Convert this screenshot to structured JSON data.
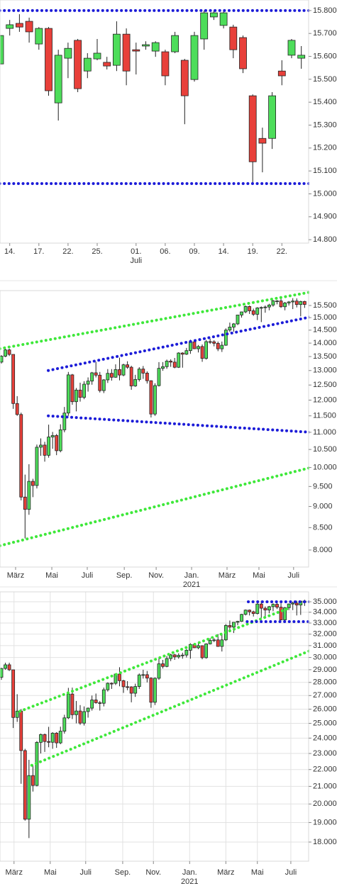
{
  "chart_data": [
    {
      "type": "candlestick",
      "log_scale": false,
      "grid": false,
      "color_up": "#4ddd5a",
      "color_down": "#e8403a",
      "ylim": [
        14785,
        15846
      ],
      "yticks": [
        {
          "value": 14800,
          "label": "14.800"
        },
        {
          "value": 14900,
          "label": "14.900"
        },
        {
          "value": 15000,
          "label": "15.000"
        },
        {
          "value": 15100,
          "label": "15.100"
        },
        {
          "value": 15200,
          "label": "15.200"
        },
        {
          "value": 15300,
          "label": "15.300"
        },
        {
          "value": 15400,
          "label": "15.400"
        },
        {
          "value": 15500,
          "label": "15.500"
        },
        {
          "value": 15600,
          "label": "15.600"
        },
        {
          "value": 15700,
          "label": "15.700"
        },
        {
          "value": 15800,
          "label": "15.800"
        }
      ],
      "xticks": [
        {
          "value": 1,
          "label": "14."
        },
        {
          "value": 4,
          "label": "17."
        },
        {
          "value": 7,
          "label": "22."
        },
        {
          "value": 10,
          "label": "25."
        },
        {
          "value": 14,
          "label": "01."
        },
        {
          "value": 17,
          "label": "06."
        },
        {
          "value": 20,
          "label": "09."
        },
        {
          "value": 23,
          "label": "14."
        },
        {
          "value": 26,
          "label": "19."
        },
        {
          "value": 29,
          "label": "22."
        }
      ],
      "xticks_secondary": [
        {
          "value": 14,
          "label": "Juli"
        }
      ],
      "open": [
        15567,
        15722,
        15744,
        15753,
        15654,
        15722,
        15397,
        15592,
        15670,
        15536,
        15589,
        15574,
        15561,
        15697,
        15629,
        15645,
        15623,
        15620,
        15620,
        15583,
        15499,
        15676,
        15772,
        15735,
        15728,
        15682,
        15428,
        15242,
        15242,
        15536,
        15605,
        15592
      ],
      "high": [
        15722,
        15759,
        15784,
        15769,
        15728,
        15728,
        15629,
        15660,
        15676,
        15614,
        15676,
        15598,
        15753,
        15722,
        15660,
        15666,
        15666,
        15629,
        15707,
        15589,
        15707,
        15800,
        15800,
        15800,
        15738,
        15691,
        15434,
        15289,
        15444,
        15583,
        15676,
        15645
      ],
      "low": [
        15552,
        15691,
        15707,
        15660,
        15629,
        15428,
        15320,
        15505,
        15444,
        15505,
        15583,
        15543,
        15536,
        15474,
        15521,
        15629,
        15598,
        15474,
        15614,
        15304,
        15490,
        15629,
        15759,
        15722,
        15592,
        15527,
        15047,
        15094,
        15196,
        15474,
        15592,
        15546
      ],
      "close": [
        15691,
        15738,
        15728,
        15707,
        15722,
        15450,
        15605,
        15635,
        15459,
        15592,
        15614,
        15558,
        15697,
        15536,
        15623,
        15651,
        15660,
        15515,
        15691,
        15428,
        15691,
        15790,
        15790,
        15790,
        15629,
        15546,
        15140,
        15221,
        15428,
        15515,
        15670,
        15605
      ],
      "trend_lines": [
        {
          "color": "#1c1cd8",
          "x": [
            -1,
            32
          ],
          "y": [
            15800,
            15800
          ]
        },
        {
          "color": "#1c1cd8",
          "x": [
            -1,
            32
          ],
          "y": [
            15045,
            15045
          ]
        }
      ]
    },
    {
      "type": "candlestick",
      "log_scale": true,
      "grid": false,
      "color_up": "#4ddd5a",
      "color_down": "#e8403a",
      "ylim": [
        7640,
        16137
      ],
      "yticks": [
        {
          "value": 8000,
          "label": "8.000"
        },
        {
          "value": 8500,
          "label": "8.500"
        },
        {
          "value": 9000,
          "label": "9.000"
        },
        {
          "value": 9500,
          "label": "9.500"
        },
        {
          "value": 10000,
          "label": "10.000"
        },
        {
          "value": 10500,
          "label": "10.500"
        },
        {
          "value": 11000,
          "label": "11.000"
        },
        {
          "value": 11500,
          "label": "11.500"
        },
        {
          "value": 12000,
          "label": "12.000"
        },
        {
          "value": 12500,
          "label": "12.500"
        },
        {
          "value": 13000,
          "label": "13.000"
        },
        {
          "value": 13500,
          "label": "13.500"
        },
        {
          "value": 14000,
          "label": "14.000"
        },
        {
          "value": 14500,
          "label": "14.500"
        },
        {
          "value": 15000,
          "label": "15.000"
        },
        {
          "value": 15500,
          "label": "15.500"
        }
      ],
      "xticks": [
        {
          "value": 3.6,
          "label": "März"
        },
        {
          "value": 12.8,
          "label": "Mai"
        },
        {
          "value": 21.8,
          "label": "Juli"
        },
        {
          "value": 31.2,
          "label": "Sep."
        },
        {
          "value": 39.3,
          "label": "Nov."
        },
        {
          "value": 48.3,
          "label": "Jan."
        },
        {
          "value": 57.3,
          "label": "März"
        },
        {
          "value": 65.4,
          "label": "Mai"
        },
        {
          "value": 74.2,
          "label": "Juli"
        }
      ],
      "xticks_secondary": [
        {
          "value": 48.3,
          "label": "2021"
        }
      ],
      "open": [
        13300,
        13513,
        13745,
        13579,
        11890,
        11542,
        9232,
        8929,
        9633,
        9525,
        10565,
        10626,
        10336,
        10861,
        10904,
        10465,
        11074,
        11587,
        12848,
        11949,
        12331,
        12089,
        12528,
        12634,
        12920,
        12838,
        12313,
        12675,
        12901,
        12765,
        13033,
        12842,
        13203,
        13116,
        12469,
        12689,
        13052,
        12909,
        12646,
        11556,
        12480,
        13077,
        13137,
        13335,
        13299,
        13114,
        13630,
        13587,
        13719,
        14049,
        13788,
        13873,
        13433,
        14057,
        14050,
        13993,
        13786,
        13920,
        14502,
        14621,
        14748,
        15107,
        15234,
        15459,
        15280,
        15136,
        15400,
        15417,
        15437,
        15520,
        15693,
        15693,
        15448,
        15607,
        15650,
        15688,
        15540,
        15669
      ],
      "high": [
        13550,
        13795,
        13790,
        13580,
        12130,
        11600,
        9810,
        10090,
        9700,
        10640,
        10820,
        10720,
        11230,
        11010,
        10950,
        11240,
        11780,
        12950,
        12880,
        12400,
        12580,
        12630,
        12760,
        12950,
        13310,
        12950,
        12700,
        13050,
        13050,
        13220,
        13460,
        13240,
        13330,
        13170,
        12850,
        13120,
        13160,
        12970,
        12660,
        12560,
        13300,
        13300,
        13390,
        13400,
        13450,
        13660,
        13660,
        13820,
        14130,
        14090,
        13930,
        13950,
        14120,
        14170,
        14110,
        14060,
        14060,
        14570,
        14800,
        14780,
        15110,
        15240,
        15500,
        15500,
        15370,
        15430,
        15460,
        15500,
        15570,
        15730,
        15730,
        15800,
        15650,
        15690,
        15810,
        15800,
        15700,
        15700
      ],
      "low": [
        13250,
        13480,
        13520,
        11720,
        11500,
        9150,
        8256,
        8800,
        9230,
        9450,
        10320,
        10160,
        10270,
        10520,
        10340,
        10420,
        11000,
        11500,
        11850,
        11640,
        11950,
        12030,
        12280,
        12510,
        12760,
        12250,
        12230,
        12570,
        12650,
        12750,
        12660,
        12800,
        13060,
        12340,
        12440,
        12620,
        12710,
        12550,
        11450,
        11500,
        12450,
        12990,
        13060,
        13130,
        13080,
        13090,
        13100,
        13560,
        13600,
        13780,
        13650,
        13310,
        13390,
        13970,
        13880,
        13700,
        13670,
        13900,
        14430,
        14440,
        14700,
        15000,
        15180,
        15150,
        15070,
        14900,
        14820,
        15200,
        15300,
        15450,
        15550,
        15400,
        15300,
        15500,
        15350,
        15420,
        15050,
        15400
      ],
      "close": [
        13513,
        13745,
        13579,
        11890,
        11542,
        9232,
        8929,
        9633,
        9525,
        10565,
        10626,
        10336,
        10861,
        10904,
        10465,
        11074,
        11587,
        12848,
        11949,
        12331,
        12089,
        12528,
        12634,
        12920,
        12838,
        12313,
        12675,
        12901,
        12765,
        13033,
        12842,
        13203,
        13116,
        12469,
        12689,
        13052,
        12909,
        12646,
        11556,
        12480,
        13077,
        13137,
        13335,
        13299,
        13114,
        13630,
        13587,
        13719,
        14049,
        13788,
        13873,
        13433,
        14057,
        14050,
        13993,
        13786,
        13920,
        14502,
        14621,
        14748,
        15107,
        15234,
        15459,
        15280,
        15136,
        15400,
        15417,
        15437,
        15520,
        15693,
        15693,
        15448,
        15607,
        15650,
        15688,
        15540,
        15669,
        15544
      ],
      "trend_lines": [
        {
          "color": "#3ee83a",
          "x": [
            -0.4,
            78.6
          ],
          "y": [
            13790,
            16075
          ]
        },
        {
          "color": "#3ee83a",
          "x": [
            -0.4,
            78.6
          ],
          "y": [
            8093,
            10000
          ]
        },
        {
          "color": "#1c1cd8",
          "x": [
            11.9,
            78.6
          ],
          "y": [
            13000,
            15030
          ]
        },
        {
          "color": "#1c1cd8",
          "x": [
            11.9,
            78.6
          ],
          "y": [
            11500,
            11000
          ]
        }
      ]
    },
    {
      "type": "candlestick",
      "log_scale": true,
      "grid": true,
      "color_up": "#4ddd5a",
      "color_down": "#e8403a",
      "ylim": [
        17072,
        35974
      ],
      "yticks": [
        {
          "value": 18000,
          "label": "18.000"
        },
        {
          "value": 19000,
          "label": "19.000"
        },
        {
          "value": 20000,
          "label": "20.000"
        },
        {
          "value": 21000,
          "label": "21.000"
        },
        {
          "value": 22000,
          "label": "22.000"
        },
        {
          "value": 23000,
          "label": "23.000"
        },
        {
          "value": 24000,
          "label": "24.000"
        },
        {
          "value": 25000,
          "label": "25.000"
        },
        {
          "value": 26000,
          "label": "26.000"
        },
        {
          "value": 27000,
          "label": "27.000"
        },
        {
          "value": 28000,
          "label": "28.000"
        },
        {
          "value": 29000,
          "label": "29.000"
        },
        {
          "value": 30000,
          "label": "30.000"
        },
        {
          "value": 31000,
          "label": "31.000"
        },
        {
          "value": 32000,
          "label": "32.000"
        },
        {
          "value": 33000,
          "label": "33.000"
        },
        {
          "value": 34000,
          "label": "34.000"
        },
        {
          "value": 35000,
          "label": "35.000"
        }
      ],
      "xticks": [
        {
          "value": 3.2,
          "label": "März"
        },
        {
          "value": 12.4,
          "label": "Mai"
        },
        {
          "value": 21.4,
          "label": "Juli"
        },
        {
          "value": 30.8,
          "label": "Sep."
        },
        {
          "value": 38.6,
          "label": "Nov."
        },
        {
          "value": 47.8,
          "label": "Jan."
        },
        {
          "value": 57.0,
          "label": "März"
        },
        {
          "value": 65.0,
          "label": "Mai"
        },
        {
          "value": 73.5,
          "label": "Juli"
        }
      ],
      "xticks_secondary": [
        {
          "value": 47.8,
          "label": "2021"
        }
      ],
      "open": [
        28400,
        29102,
        29398,
        28992,
        25409,
        25865,
        23186,
        19174,
        21637,
        21053,
        23719,
        24242,
        23775,
        23724,
        24331,
        23685,
        24465,
        25383,
        27111,
        25606,
        25871,
        25016,
        25827,
        26075,
        26672,
        26470,
        26428,
        27433,
        27931,
        27930,
        28654,
        28133,
        27666,
        27657,
        27174,
        27683,
        28587,
        28606,
        28336,
        26502,
        28323,
        29479,
        29263,
        29910,
        30218,
        30046,
        30179,
        30200,
        30606,
        31098,
        30814,
        30997,
        29983,
        31148,
        31458,
        31494,
        30932,
        31496,
        32779,
        32628,
        33072,
        33153,
        33801,
        34201,
        34043,
        33875,
        34778,
        34382,
        34208,
        34529,
        34756,
        34480,
        33290,
        34433,
        34786,
        34870,
        34688,
        35062
      ],
      "high": [
        29150,
        29570,
        29570,
        29000,
        27100,
        26000,
        23300,
        22600,
        22300,
        23800,
        24300,
        24300,
        24760,
        24400,
        24400,
        24770,
        25600,
        27580,
        27600,
        26600,
        26300,
        26200,
        26120,
        27000,
        27150,
        26600,
        27600,
        28000,
        28000,
        28700,
        29200,
        28200,
        28100,
        27700,
        27900,
        28700,
        29000,
        28900,
        28400,
        28400,
        29930,
        29800,
        30120,
        30300,
        30300,
        30350,
        30400,
        30700,
        31200,
        31200,
        31270,
        31000,
        31200,
        31650,
        31650,
        32000,
        31950,
        32900,
        33230,
        33100,
        33200,
        33850,
        34260,
        34260,
        34150,
        35100,
        35090,
        34550,
        34600,
        34850,
        35000,
        34850,
        34500,
        34830,
        35000,
        35100,
        35100,
        35200
      ],
      "low": [
        28200,
        29000,
        28900,
        24680,
        25100,
        21150,
        19100,
        18200,
        20700,
        21000,
        23000,
        23100,
        23400,
        23300,
        23360,
        23600,
        24300,
        25300,
        25300,
        25000,
        24900,
        24850,
        25400,
        25900,
        26400,
        25900,
        26200,
        27300,
        27500,
        27800,
        27700,
        27200,
        27400,
        26500,
        26900,
        27500,
        28300,
        28000,
        26100,
        26300,
        28200,
        29100,
        29200,
        29700,
        29800,
        29900,
        29900,
        30000,
        29900,
        30800,
        30700,
        29850,
        29900,
        31100,
        31300,
        30900,
        30500,
        31400,
        32300,
        32100,
        32800,
        33100,
        33700,
        33700,
        33600,
        33800,
        33470,
        33600,
        33900,
        34100,
        34300,
        33250,
        33200,
        34200,
        34200,
        33700,
        33750,
        34600
      ],
      "close": [
        29102,
        29398,
        28992,
        25409,
        25865,
        23186,
        19174,
        21637,
        21053,
        23719,
        24242,
        23775,
        23724,
        24331,
        23685,
        24465,
        25383,
        27111,
        25606,
        25871,
        25016,
        25827,
        26075,
        26672,
        26470,
        26428,
        27433,
        27931,
        27930,
        28654,
        28133,
        27666,
        27657,
        27174,
        27683,
        28587,
        28606,
        28336,
        26502,
        28323,
        29479,
        29263,
        29910,
        30218,
        30046,
        30179,
        30200,
        30606,
        31098,
        30814,
        30997,
        29983,
        31148,
        31458,
        31494,
        30932,
        31496,
        32779,
        32628,
        33072,
        33153,
        33801,
        34201,
        34043,
        33875,
        34778,
        34382,
        34208,
        34529,
        34756,
        34480,
        33290,
        34433,
        34786,
        34870,
        34688,
        35062,
        34935
      ],
      "trend_lines": [
        {
          "color": "#3ee83a",
          "x": [
            4.7,
            73.5
          ],
          "y": [
            25850,
            34455
          ]
        },
        {
          "color": "#3ee83a",
          "x": [
            7.7,
            82.9
          ],
          "y": [
            22260,
            31200
          ]
        },
        {
          "color": "#1c1cd8",
          "x": [
            62.7,
            82.9
          ],
          "y": [
            35000,
            35000
          ]
        },
        {
          "color": "#1c1cd8",
          "x": [
            62.4,
            82.9
          ],
          "y": [
            33130,
            33130
          ]
        }
      ]
    }
  ]
}
